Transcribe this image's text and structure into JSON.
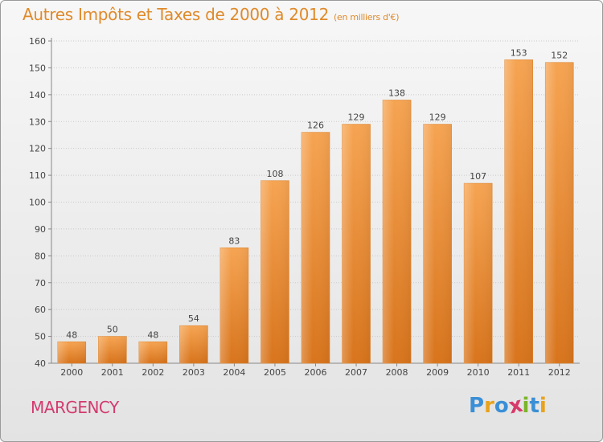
{
  "title": "Autres Impôts et Taxes de 2000 à 2012",
  "subtitle": "(en milliers d'€)",
  "city": "MARGENCY",
  "logo": {
    "letters": [
      "P",
      "r",
      "o",
      "x",
      "i",
      "t",
      "i"
    ],
    "colors": [
      "#3a8fd6",
      "#e8a31c",
      "#3a8fd6",
      "#d63a6a",
      "#7ab52a",
      "#3a8fd6",
      "#e8a31c"
    ]
  },
  "colors": {
    "bar_top": "#f6a452",
    "bar_bottom": "#d8741c",
    "title": "#e08a2a",
    "city": "#d33a6f"
  },
  "chart_data": {
    "type": "bar",
    "title": "Autres Impôts et Taxes de 2000 à 2012",
    "subtitle": "(en milliers d'€)",
    "xlabel": "",
    "ylabel": "",
    "categories": [
      "2000",
      "2001",
      "2002",
      "2003",
      "2004",
      "2005",
      "2006",
      "2007",
      "2008",
      "2009",
      "2010",
      "2011",
      "2012"
    ],
    "values": [
      48,
      50,
      48,
      54,
      83,
      108,
      126,
      129,
      138,
      129,
      107,
      153,
      152
    ],
    "ylim": [
      40,
      160
    ],
    "yticks": [
      40,
      50,
      60,
      70,
      80,
      90,
      100,
      110,
      120,
      130,
      140,
      150,
      160
    ],
    "grid": true,
    "legend": "none"
  }
}
